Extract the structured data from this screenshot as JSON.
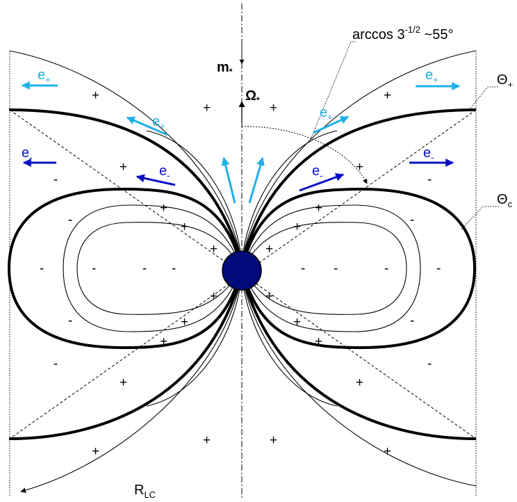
{
  "labels": {
    "magnetic_moment": "m",
    "magnetic_moment_sub": "*",
    "rotation": "Ω",
    "rotation_sub": "*",
    "angle_main": "arccos 3",
    "angle_exp": "-1/2",
    "angle_tail": " ~55°",
    "theta_plus": "Θ",
    "theta_plus_sub": "+",
    "theta_c": "Θ",
    "theta_c_sub": "c",
    "light_cylinder": "R",
    "light_cylinder_sub": "LC",
    "positron": "e",
    "positron_sign": "+",
    "electron": "e",
    "electron_sign": "-",
    "plus": "+",
    "minus": "-"
  },
  "colors": {
    "positron_arrow": "#1eb0e8",
    "electron_arrow": "#0a10c8",
    "star": "#000a78",
    "lines": "#000000"
  }
}
